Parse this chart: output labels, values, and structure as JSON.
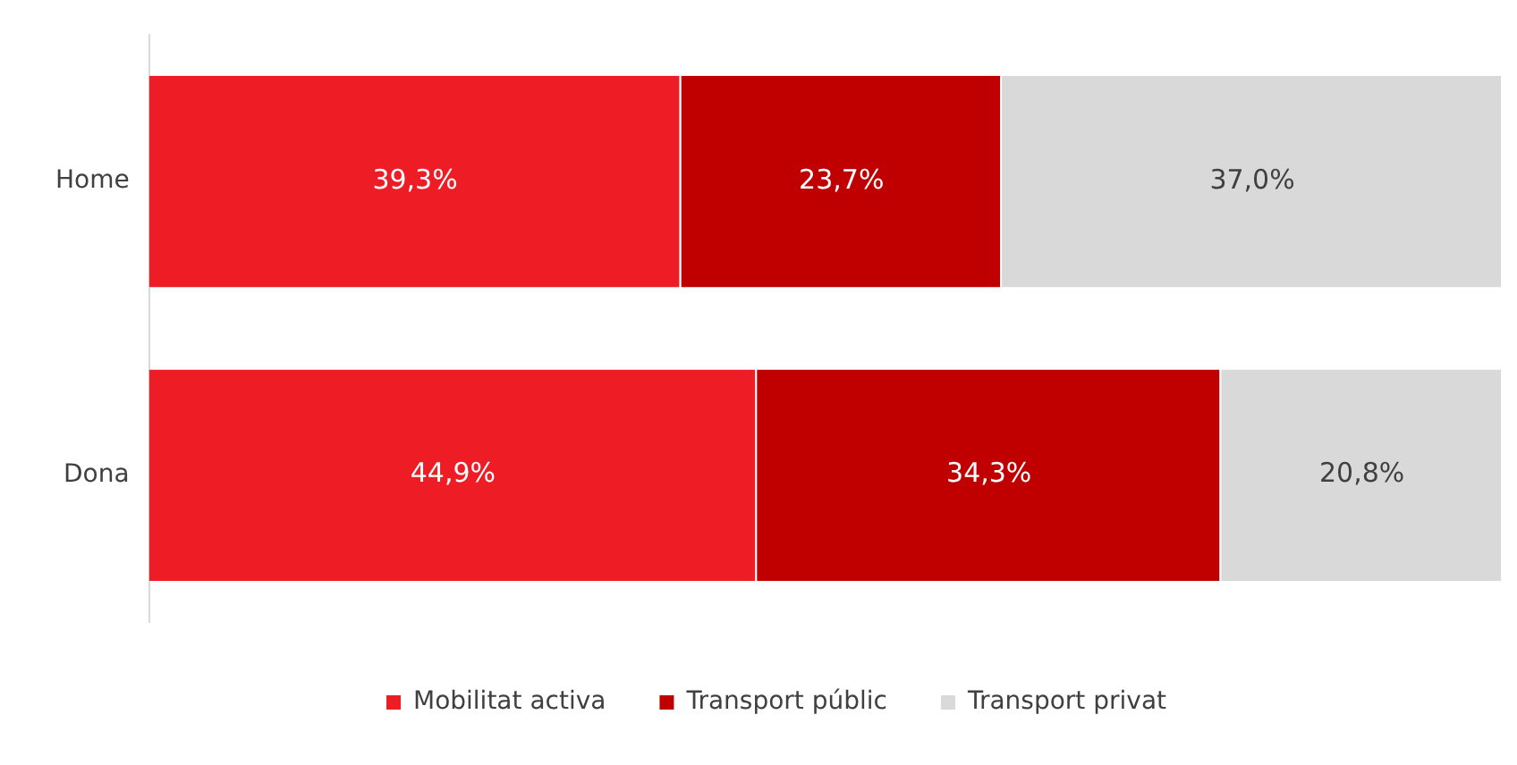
{
  "chart_data": {
    "type": "bar",
    "orientation": "horizontal",
    "stacked": true,
    "categories": [
      "Home",
      "Dona"
    ],
    "series": [
      {
        "name": "Mobilitat activa",
        "color": "#ee1c25",
        "values": [
          39.3,
          44.9
        ],
        "value_labels": [
          "39,3%",
          "44,9%"
        ]
      },
      {
        "name": "Transport públic",
        "color": "#c00000",
        "values": [
          23.7,
          34.3
        ],
        "value_labels": [
          "23,7%",
          "34,3%"
        ]
      },
      {
        "name": "Transport privat",
        "color": "#d9d9d9",
        "values": [
          37.0,
          20.8
        ],
        "value_labels": [
          "37,0%",
          "20,8%"
        ]
      }
    ],
    "xlim": [
      0,
      100
    ],
    "tick_labels": "y",
    "grid": false,
    "legend": "bottom"
  }
}
